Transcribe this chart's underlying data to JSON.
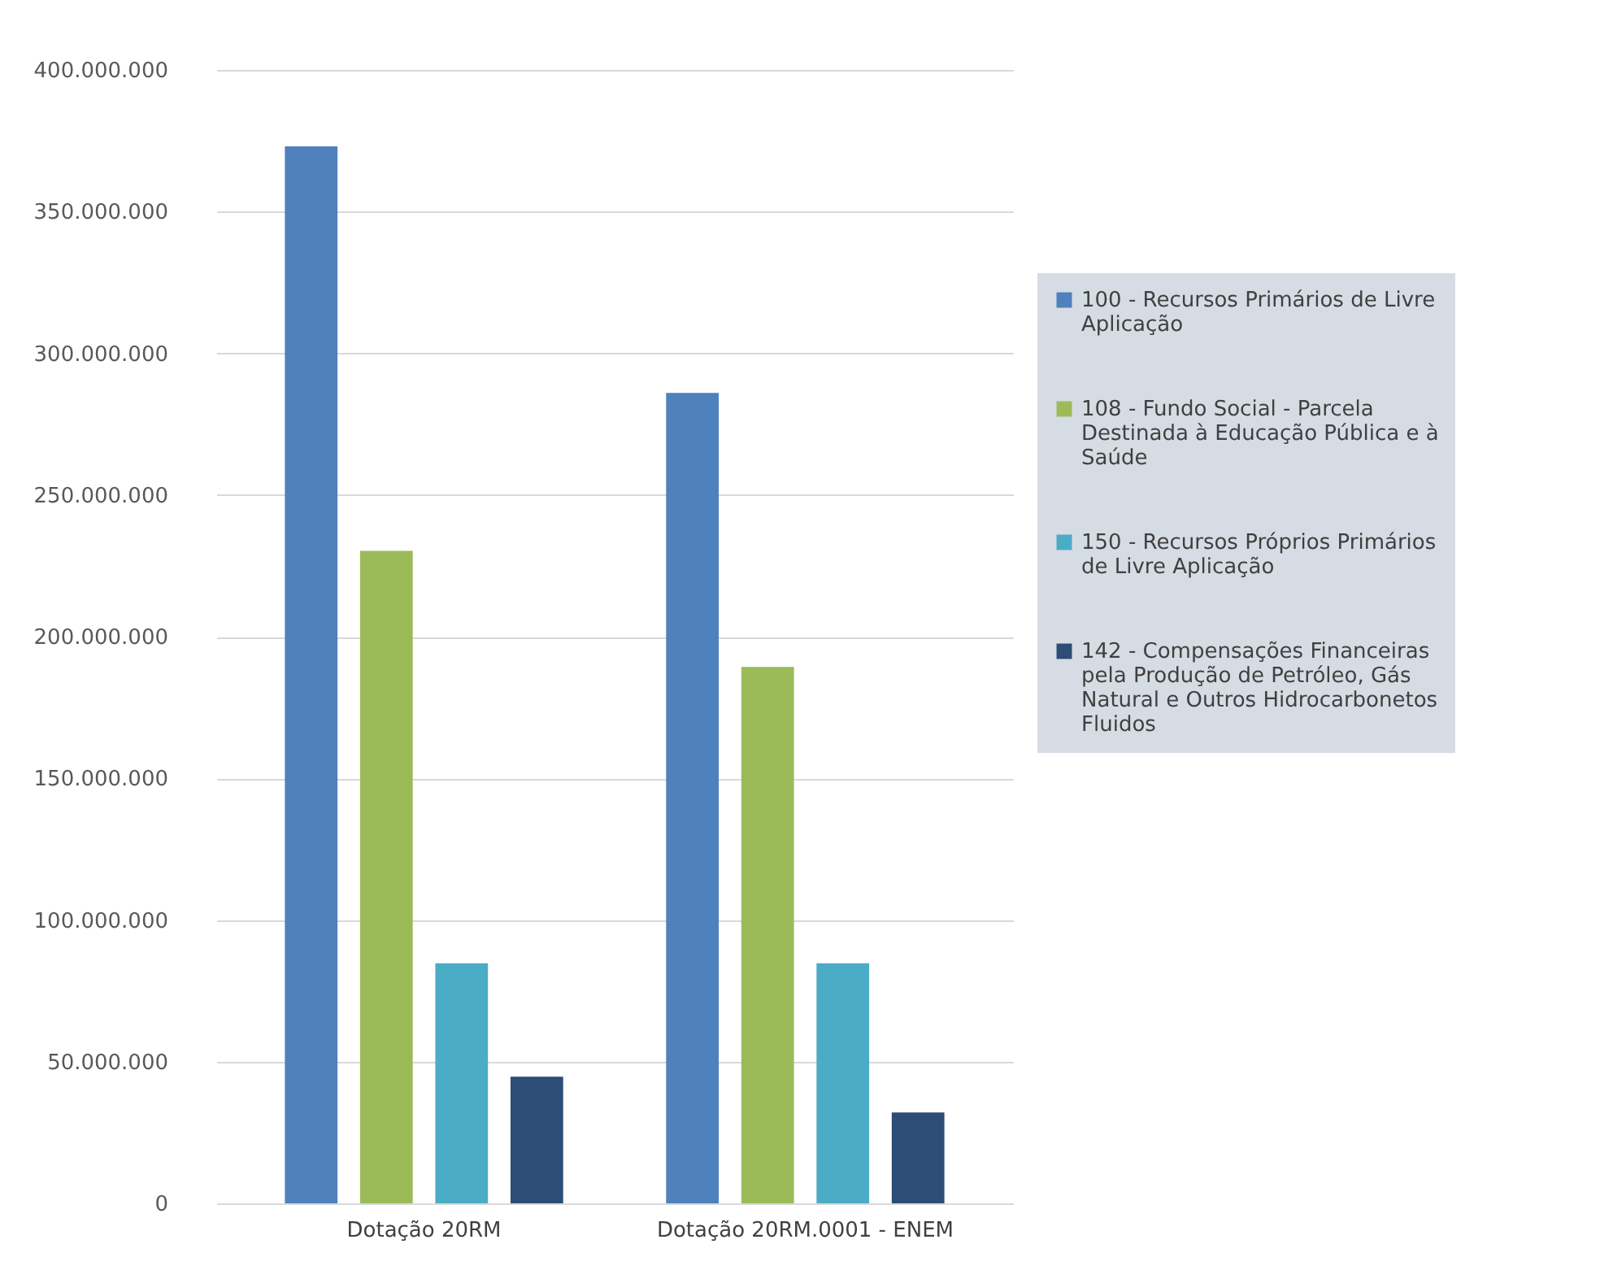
{
  "chart_data": {
    "type": "bar",
    "categories": [
      "Dotação 20RM",
      "Dotação 20RM.0001 - ENEM"
    ],
    "series": [
      {
        "name": "100 - Recursos Primários de Livre Aplicação",
        "color": "#4f81bd",
        "values": [
          373000000,
          286000000
        ]
      },
      {
        "name": "108 - Fundo Social - Parcela Destinada à Educação Pública e à Saúde",
        "color": "#9bbb59",
        "values": [
          230300000,
          189300000
        ]
      },
      {
        "name": "150 - Recursos Próprios Primários de Livre Aplicação",
        "color": "#4bacc6",
        "values": [
          84700000,
          84700000
        ]
      },
      {
        "name": "142 - Compensações Financeiras pela Produção de Petróleo, Gás Natural e Outros Hidrocarbonetos Fluidos",
        "color": "#2c4d75",
        "values": [
          44700000,
          32100000
        ]
      }
    ],
    "ylim": [
      0,
      400000000
    ],
    "yticks": [
      0,
      {
        "value": 50000000,
        "label": "50.000.000"
      },
      {
        "value": 100000000,
        "label": "100.000.000"
      },
      {
        "value": 150000000,
        "label": "150.000.000"
      },
      {
        "value": 200000000,
        "label": "200.000.000"
      },
      {
        "value": 250000000,
        "label": "250.000.000"
      },
      {
        "value": 300000000,
        "label": "300.000.000"
      },
      {
        "value": 350000000,
        "label": "350.000.000"
      },
      {
        "value": 400000000,
        "label": "400.000.000"
      }
    ],
    "grid": "y",
    "legend": "right"
  }
}
